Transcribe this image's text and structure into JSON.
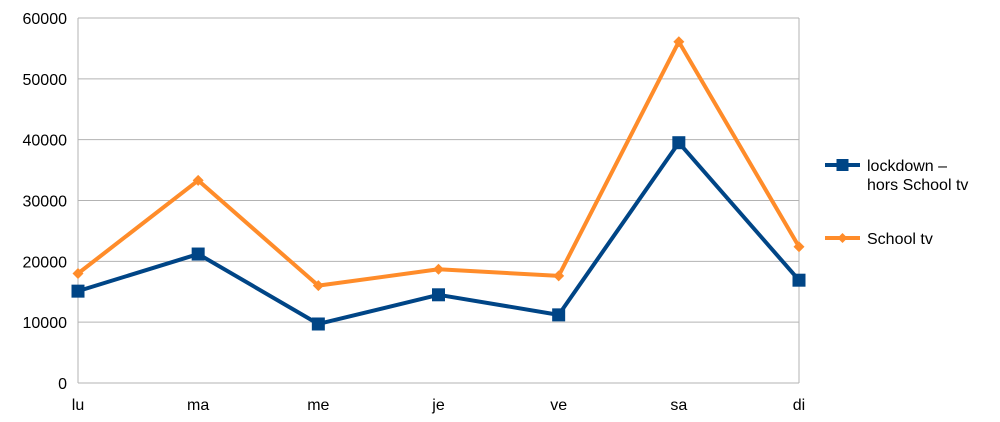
{
  "chart_data": {
    "type": "line",
    "title": "",
    "xlabel": "",
    "ylabel": "",
    "categories": [
      "lu",
      "ma",
      "me",
      "je",
      "ve",
      "sa",
      "di"
    ],
    "ylim": [
      0,
      60000
    ],
    "yticks": [
      "0",
      "10000",
      "20000",
      "30000",
      "40000",
      "50000",
      "60000"
    ],
    "grid": "horizontal",
    "legend_position": "right",
    "series": [
      {
        "name": "lockdown – hors School tv",
        "name_lines": [
          "lockdown –",
          "hors School tv"
        ],
        "color": "#004586",
        "marker": "square",
        "values": [
          15100,
          21200,
          9700,
          14500,
          11200,
          39500,
          16900
        ]
      },
      {
        "name": "School tv",
        "name_lines": [
          "School tv"
        ],
        "color": "#ff8c2a",
        "marker": "diamond",
        "values": [
          18000,
          33300,
          16000,
          18700,
          17600,
          56100,
          22400
        ]
      }
    ]
  }
}
